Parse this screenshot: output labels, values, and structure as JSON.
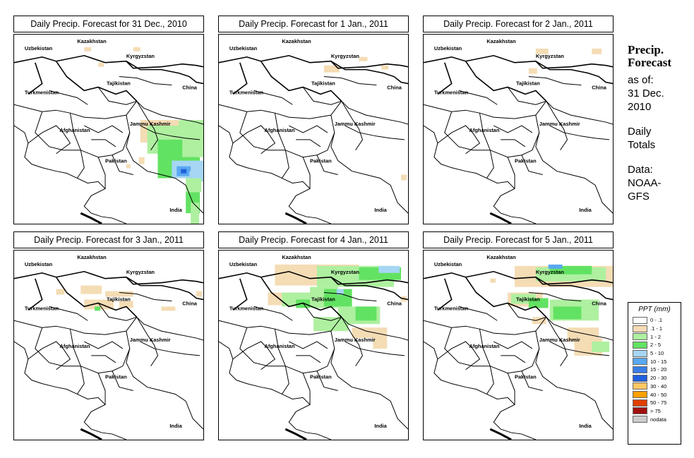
{
  "colors": {
    "c1": "#f4dcb4",
    "c2": "#aef0a0",
    "c3": "#62e262",
    "c4": "#a6d6f4",
    "c5": "#5aa8f0",
    "c6": "#2060dc",
    "border": "#000000"
  },
  "map_labels": {
    "uzbekistan": "Uzbekistan",
    "kazakhstan": "Kazakhstan",
    "kyrgyzstan": "Kyrgyzstan",
    "tajikistan": "Tajikistan",
    "china": "China",
    "turkmenistan": "Turkmenistan",
    "afghanistan": "Afghanistan",
    "jammu_kashmir": "Jammu Kashmir",
    "pakistan": "Pakistan",
    "india": "India"
  },
  "panels": [
    {
      "title": "Daily Precip. Forecast for  31 Dec., 2010"
    },
    {
      "title": "Daily Precip. Forecast for  1 Jan., 2011"
    },
    {
      "title": "Daily Precip. Forecast for  2 Jan., 2011"
    },
    {
      "title": "Daily Precip. Forecast for  3 Jan., 2011"
    },
    {
      "title": "Daily Precip. Forecast for  4 Jan., 2011"
    },
    {
      "title": "Daily Precip. Forecast for  5 Jan., 2011"
    }
  ],
  "sidebar": {
    "title_line1": "Precip.",
    "title_line2": "Forecast",
    "asof_line1": "as of:",
    "asof_line2": "31 Dec.",
    "asof_line3": "2010",
    "totals_line1": "Daily",
    "totals_line2": "Totals",
    "data_line1": "Data:",
    "data_line2": "NOAA-",
    "data_line3": "GFS"
  },
  "legend": {
    "title": "PPT (mm)",
    "items": [
      {
        "label": "0 - .1",
        "color": "#ffffff"
      },
      {
        "label": ".1 - 1",
        "color": "#f4dcb4"
      },
      {
        "label": "1 - 2",
        "color": "#aef0a0"
      },
      {
        "label": "2 - 5",
        "color": "#62e262"
      },
      {
        "label": "5 - 10",
        "color": "#a6d6f4"
      },
      {
        "label": "10 - 15",
        "color": "#5aa8f0"
      },
      {
        "label": "15 - 20",
        "color": "#3a7ee8"
      },
      {
        "label": "20 - 30",
        "color": "#2060dc"
      },
      {
        "label": "30 - 40",
        "color": "#ffc864"
      },
      {
        "label": "40 - 50",
        "color": "#ffa000"
      },
      {
        "label": "50 - 75",
        "color": "#e04000"
      },
      {
        "label": "> 75",
        "color": "#a01010"
      },
      {
        "label": "nodata",
        "color": "#cccccc"
      }
    ]
  }
}
